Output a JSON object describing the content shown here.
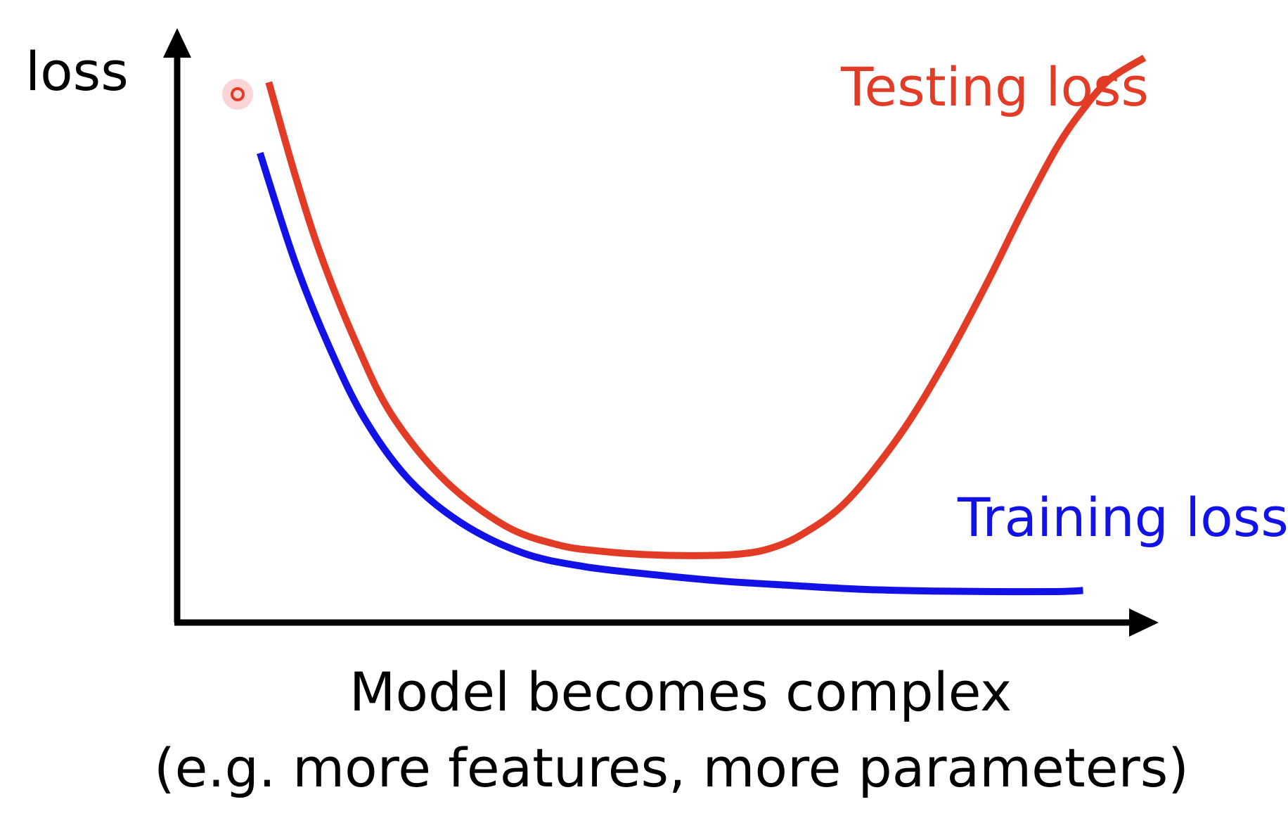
{
  "chart_data": {
    "type": "line",
    "ylabel": "loss",
    "xlabel": "Model becomes complex",
    "xlabel_sub": "(e.g. more features, more parameters)",
    "colors": {
      "testing": "#e23b26",
      "training": "#1212e6",
      "axis": "#000000"
    },
    "series": [
      {
        "name": "Testing loss",
        "color": "#e23b26",
        "x": [
          0.0,
          0.3,
          0.6,
          1.0,
          1.4,
          2.0,
          2.7,
          3.3,
          3.8,
          4.3,
          4.8,
          5.3,
          5.7,
          6.1,
          6.6,
          7.2,
          7.7,
          8.2,
          8.6,
          9.0,
          9.3,
          9.6,
          10.0
        ],
        "y": [
          9.8,
          8.1,
          6.6,
          5.0,
          3.7,
          2.5,
          1.65,
          1.3,
          1.18,
          1.12,
          1.1,
          1.12,
          1.22,
          1.5,
          2.1,
          3.3,
          4.6,
          6.1,
          7.4,
          8.6,
          9.3,
          9.85,
          10.25
        ]
      },
      {
        "name": "Training loss",
        "color": "#1212e6",
        "x": [
          -0.1,
          0.3,
          0.7,
          1.1,
          1.6,
          2.2,
          2.9,
          3.6,
          4.4,
          5.2,
          6.0,
          6.8,
          7.6,
          8.3,
          9.0,
          9.3
        ],
        "y": [
          8.5,
          6.5,
          4.9,
          3.6,
          2.5,
          1.7,
          1.15,
          0.9,
          0.75,
          0.63,
          0.55,
          0.48,
          0.45,
          0.44,
          0.44,
          0.46
        ]
      }
    ],
    "xlim": [
      -0.5,
      10.5
    ],
    "ylim": [
      0,
      10.6
    ],
    "grid": false,
    "legend": "inline labels near curve ends"
  }
}
